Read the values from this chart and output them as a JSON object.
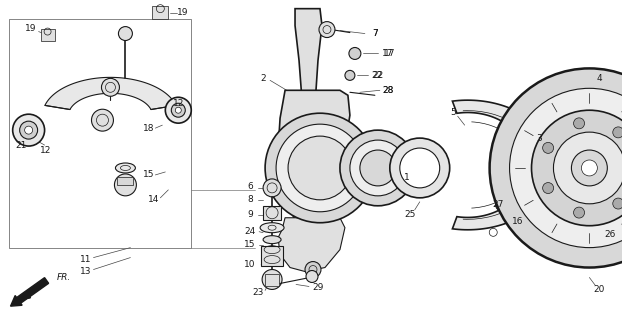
{
  "bg_color": "#ffffff",
  "line_color": "#1a1a1a",
  "fig_width": 6.23,
  "fig_height": 3.2,
  "dpi": 100
}
